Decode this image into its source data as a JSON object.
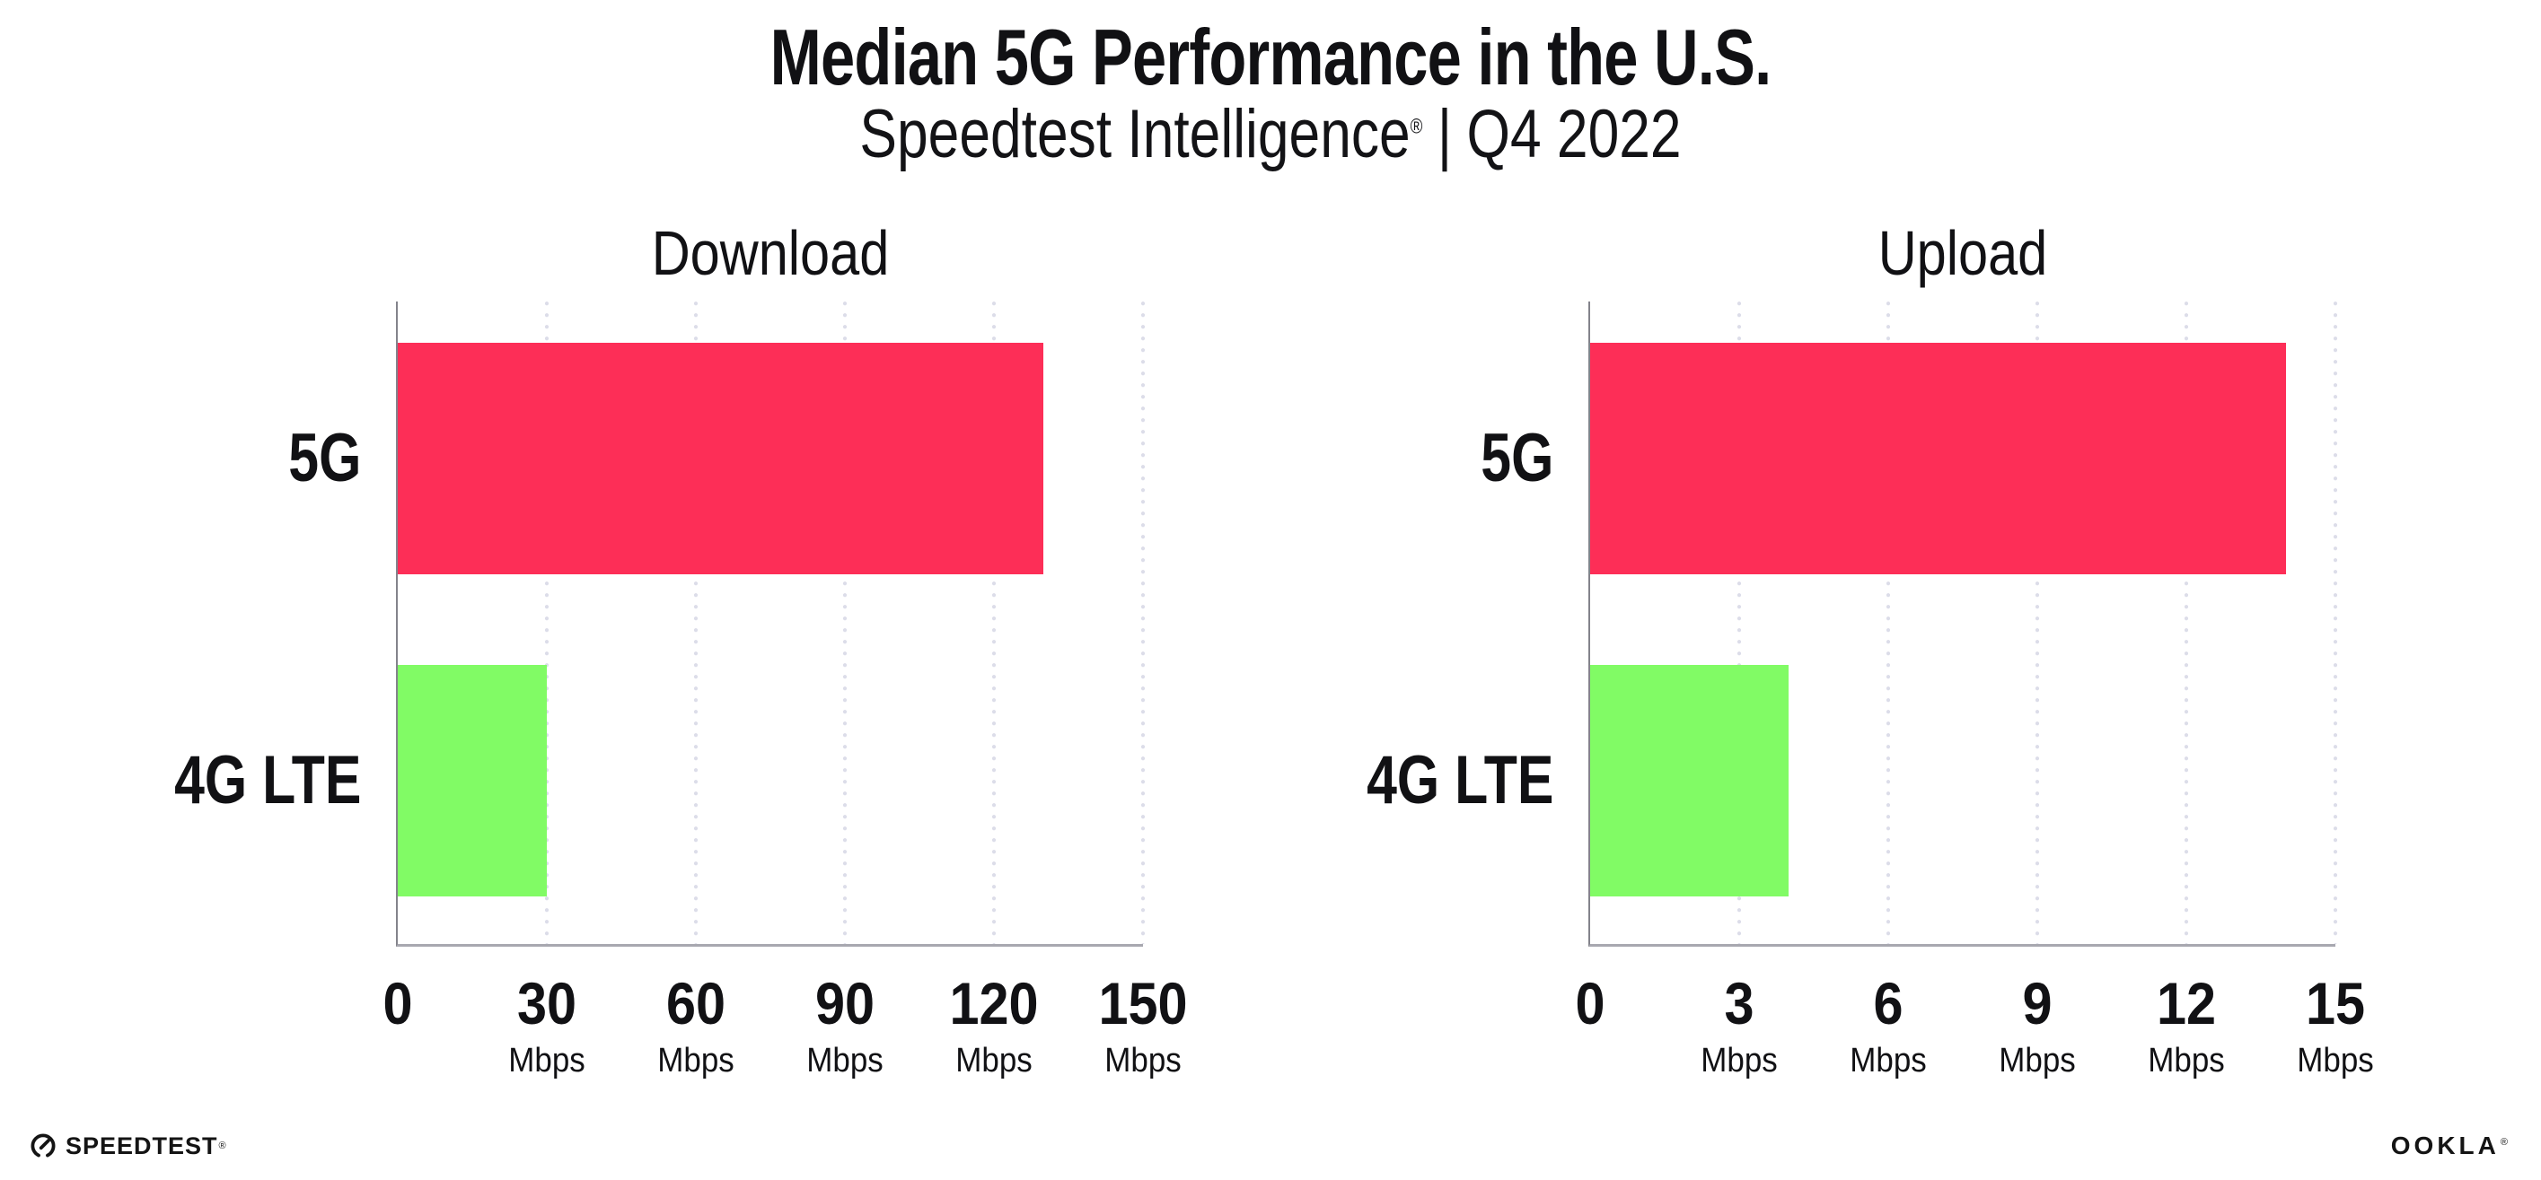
{
  "header": {
    "title": "Median 5G Performance in the U.S.",
    "subtitle": {
      "brand": "Speedtest Intelligence",
      "reg_mark": "®",
      "separator": "|",
      "period": "Q4 2022"
    }
  },
  "chart_data": [
    {
      "type": "bar",
      "orientation": "horizontal",
      "title": "Download",
      "categories": [
        "5G",
        "4G LTE"
      ],
      "values": [
        130,
        30
      ],
      "unit": "Mbps",
      "xlim": [
        0,
        150
      ],
      "xticks": [
        0,
        30,
        60,
        90,
        120,
        150
      ],
      "grid": "dotted vertical gridlines at each tick",
      "legend": "none"
    },
    {
      "type": "bar",
      "orientation": "horizontal",
      "title": "Upload",
      "categories": [
        "5G",
        "4G LTE"
      ],
      "values": [
        14,
        4
      ],
      "unit": "Mbps",
      "xlim": [
        0,
        15
      ],
      "xticks": [
        0,
        3,
        6,
        9,
        12,
        15
      ],
      "grid": "dotted vertical gridlines at each tick",
      "legend": "none"
    }
  ],
  "series_colors": {
    "5G": "#fd2e57",
    "4G LTE": "#81fb65"
  },
  "style_colors": {
    "gridline_dot": "#dcdde9",
    "y_axis_line": "#83838b",
    "x_axis_line": "#a8a8b0",
    "text": "#111114"
  },
  "footer": {
    "speedtest_wordmark": "SPEEDTEST",
    "speedtest_reg": "®",
    "ookla_wordmark": "OOKLA",
    "ookla_reg": "®"
  }
}
